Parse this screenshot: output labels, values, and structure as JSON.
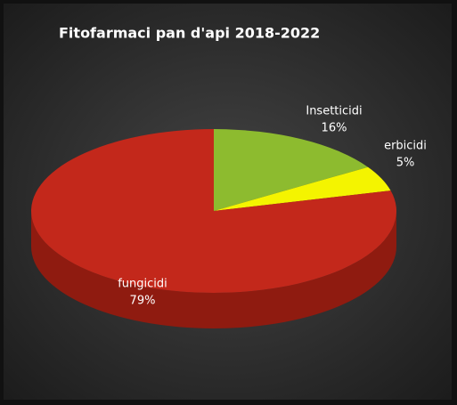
{
  "chart_data": {
    "type": "pie",
    "title": "Fitofarmaci pan d'api 2018-2022",
    "categories": [
      "Insetticidi",
      "erbicidi",
      "fungicidi"
    ],
    "values": [
      16,
      5,
      79
    ],
    "value_labels": [
      "16%",
      "5%",
      "79%"
    ],
    "colors": [
      "#8dbb2f",
      "#f4f400",
      "#c3281b"
    ],
    "side_colors": [
      "#6a9020",
      "#b5b500",
      "#8f1b10"
    ]
  }
}
